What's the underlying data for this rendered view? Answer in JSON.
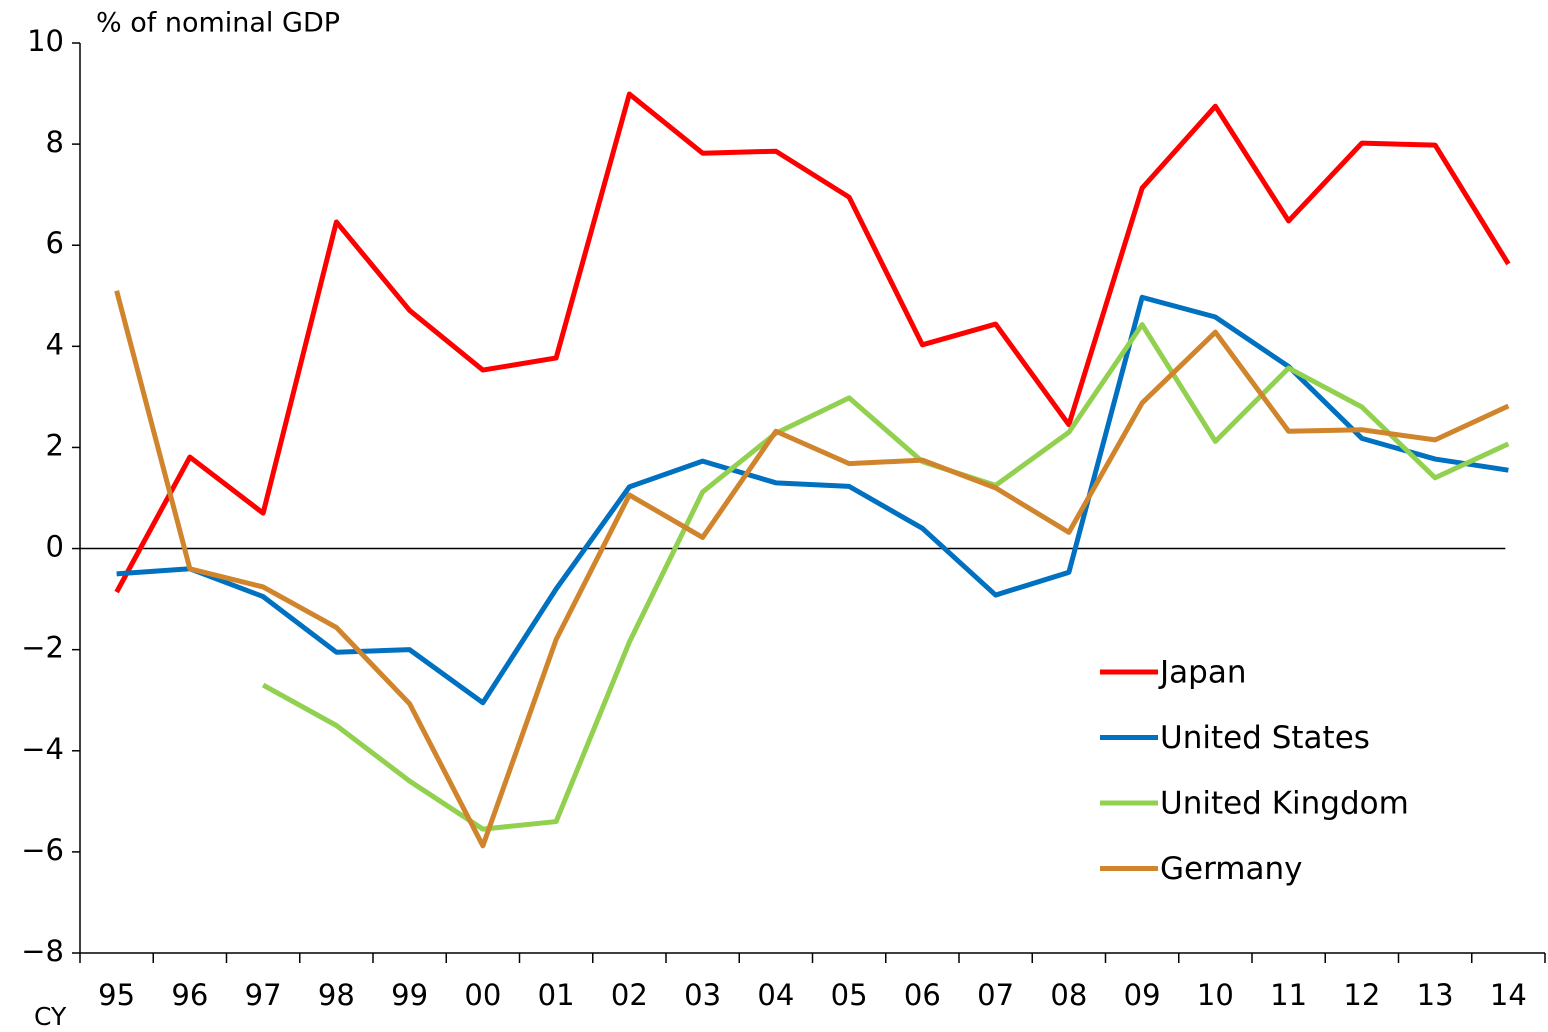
{
  "chart_data": {
    "type": "line",
    "y_label": "% of nominal GDP",
    "x_label": "CY",
    "categories": [
      "95",
      "96",
      "97",
      "98",
      "99",
      "00",
      "01",
      "02",
      "03",
      "04",
      "05",
      "06",
      "07",
      "08",
      "09",
      "10",
      "11",
      "12",
      "13",
      "14"
    ],
    "series": [
      {
        "name": "Japan",
        "color": "#ff0000",
        "values": [
          -0.86,
          1.81,
          0.7,
          6.46,
          4.71,
          3.53,
          3.77,
          8.99,
          7.82,
          7.86,
          6.95,
          4.03,
          4.44,
          2.45,
          7.13,
          8.75,
          6.48,
          8.02,
          7.98,
          5.63
        ]
      },
      {
        "name": "United States",
        "color": "#0070c0",
        "values": [
          -0.5,
          -0.4,
          -0.95,
          -2.05,
          -2.0,
          -3.05,
          -0.8,
          1.22,
          1.73,
          1.3,
          1.23,
          0.4,
          -0.92,
          -0.47,
          4.97,
          4.58,
          3.6,
          2.18,
          1.77,
          1.55
        ]
      },
      {
        "name": "United Kingdom",
        "color": "#92d050",
        "values": [
          null,
          null,
          -2.7,
          -3.5,
          -4.6,
          -5.55,
          -5.4,
          -1.85,
          1.12,
          2.28,
          2.98,
          1.72,
          1.25,
          2.3,
          4.43,
          2.12,
          3.57,
          2.8,
          1.4,
          2.07
        ]
      },
      {
        "name": "Germany",
        "color": "#d0842c",
        "values": [
          5.1,
          -0.4,
          -0.76,
          -1.56,
          -3.07,
          -5.88,
          -1.8,
          1.06,
          0.22,
          2.32,
          1.68,
          1.75,
          1.2,
          0.32,
          2.88,
          4.28,
          2.32,
          2.35,
          2.15,
          2.82
        ]
      }
    ],
    "ylim": [
      -8,
      10
    ],
    "yticks": [
      {
        "value": -8,
        "label": "−8"
      },
      {
        "value": -6,
        "label": "−6"
      },
      {
        "value": -4,
        "label": "−4"
      },
      {
        "value": -2,
        "label": "−2"
      },
      0,
      2,
      4,
      6,
      8,
      10
    ],
    "legend": "lower right"
  }
}
